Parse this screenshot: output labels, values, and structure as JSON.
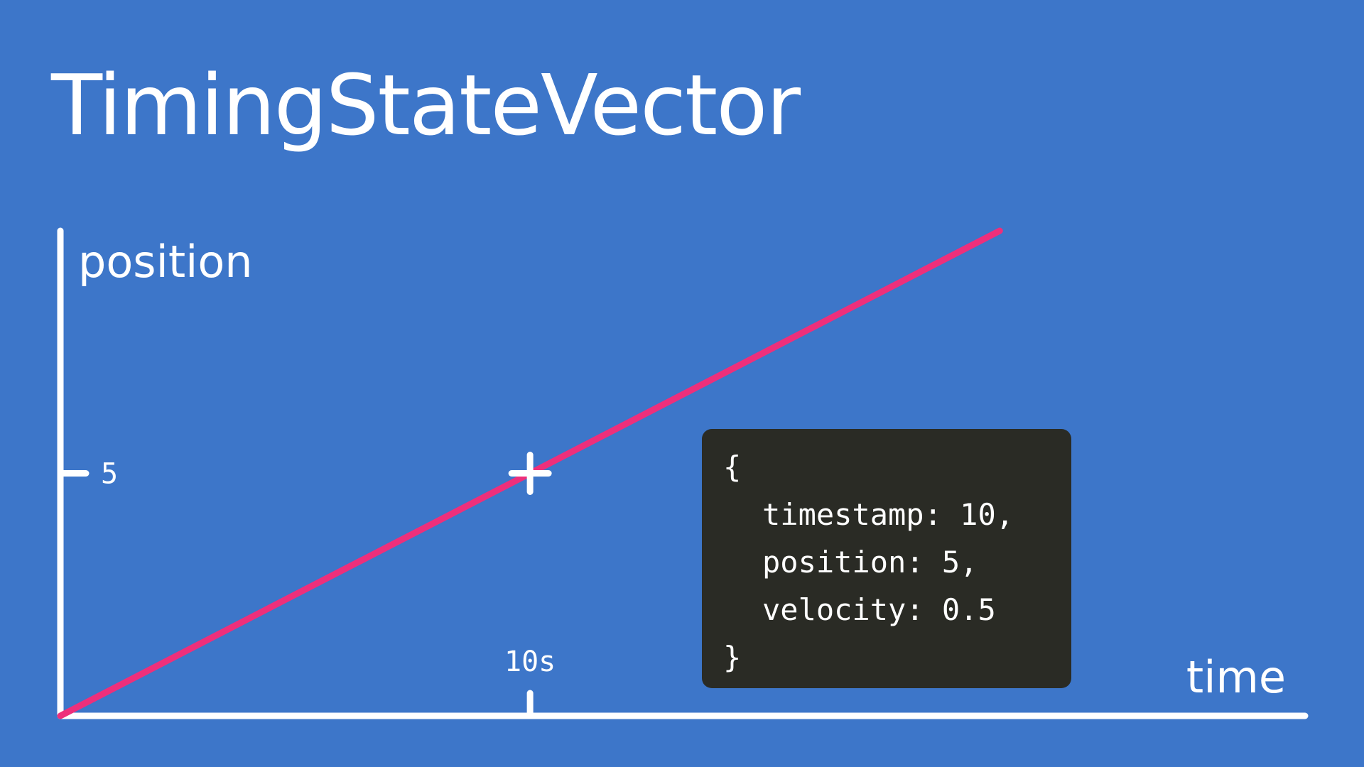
{
  "slide": {
    "title": "TimingStateVector"
  },
  "colors": {
    "background": "#3d76c9",
    "axis": "#ffffff",
    "line": "#ee2f7b",
    "code_background": "#2a2b25"
  },
  "chart_data": {
    "type": "line",
    "xlabel": "time",
    "ylabel": "position",
    "x_ticks": [
      {
        "value": 10,
        "label": "10s"
      }
    ],
    "y_ticks": [
      {
        "value": 5,
        "label": "5"
      }
    ],
    "xlim": [
      0,
      26.5
    ],
    "ylim": [
      0,
      10
    ],
    "series": [
      {
        "x": [
          0,
          20
        ],
        "y": [
          0,
          10
        ],
        "color": "#ee2f7b"
      }
    ],
    "marker": {
      "x": 10,
      "y": 5,
      "shape": "plus"
    },
    "grid": false
  },
  "code_box": {
    "open": "{",
    "lines": [
      {
        "key": "timestamp",
        "value": "10",
        "trail": ","
      },
      {
        "key": "position",
        "value": "5",
        "trail": ","
      },
      {
        "key": "velocity",
        "value": "0.5",
        "trail": ""
      }
    ],
    "close": "}"
  }
}
